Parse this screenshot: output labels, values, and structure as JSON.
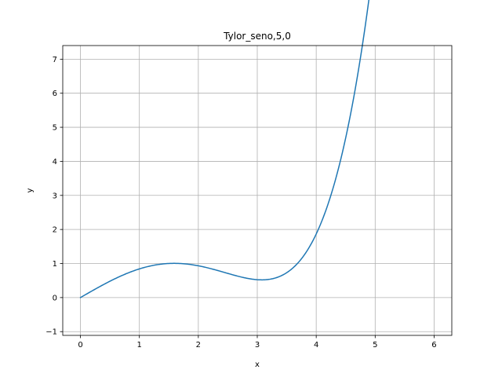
{
  "chart_data": {
    "type": "line",
    "title": "Tylor_seno,5,0",
    "xlabel": "x",
    "ylabel": "y",
    "xlim": [
      -0.3,
      6.3
    ],
    "ylim": [
      -1.11,
      7.4
    ],
    "x_ticks": [
      0,
      1,
      2,
      3,
      4,
      5,
      6
    ],
    "y_ticks": [
      -1,
      0,
      1,
      2,
      3,
      4,
      5,
      6,
      7
    ],
    "grid": true,
    "series": [
      {
        "color": "#1f77b4",
        "function": "x - x^3/6 + x^5/120",
        "x_range": [
          0,
          6
        ]
      }
    ]
  }
}
